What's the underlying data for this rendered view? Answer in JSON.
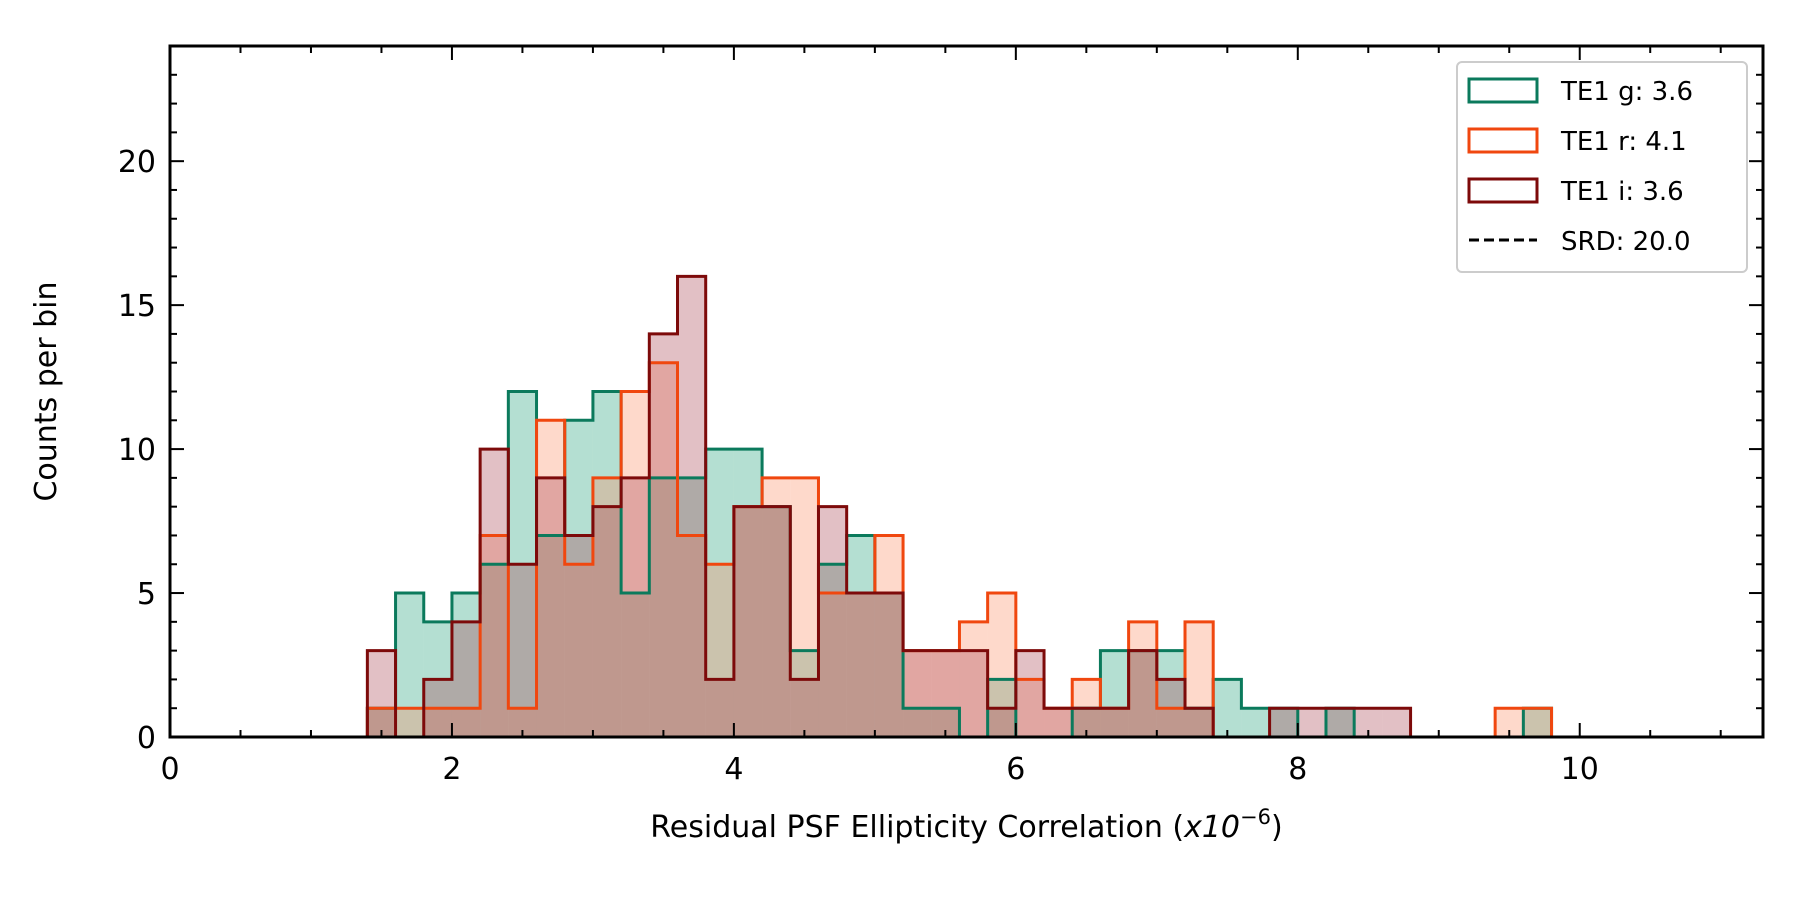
{
  "chart_data": {
    "type": "bar",
    "title": "",
    "xlabel": "Residual PSF Ellipticity Correlation (",
    "xlabel_unit": "x10",
    "xlabel_exponent": "−6",
    "xlabel_suffix": ")",
    "ylabel": "Counts per bin",
    "xlim": [
      0,
      11.3
    ],
    "ylim": [
      0,
      24
    ],
    "xticks": [
      0,
      2,
      4,
      6,
      8,
      10
    ],
    "xtick_labels": [
      "0",
      "2",
      "4",
      "6",
      "8",
      "10"
    ],
    "yticks": [
      0,
      5,
      10,
      15,
      20
    ],
    "ytick_labels": [
      "0",
      "5",
      "10",
      "15",
      "20"
    ],
    "grid": false,
    "legend_position": "top-right",
    "bin_edges": [
      1.4,
      1.6,
      1.8,
      2.0,
      2.2,
      2.4,
      2.6,
      2.8,
      3.0,
      3.2,
      3.4,
      3.6,
      3.8,
      4.0,
      4.2,
      4.4,
      4.6,
      4.8,
      5.0,
      5.2,
      5.4,
      5.6,
      5.8,
      6.0,
      6.2,
      6.4,
      6.6,
      6.8,
      7.0,
      7.2,
      7.4,
      7.6,
      7.8,
      8.0,
      8.2,
      8.4,
      8.6,
      8.8,
      9.0,
      9.2,
      9.4,
      9.6,
      9.8
    ],
    "series": [
      {
        "name": "TE1 g: 3.6",
        "edge_color": "#0b7a5c",
        "fill_color": "#1b9e77",
        "values": [
          1,
          5,
          4,
          5,
          6,
          12,
          7,
          11,
          12,
          5,
          9,
          9,
          10,
          10,
          8,
          3,
          6,
          7,
          5,
          1,
          1,
          0,
          2,
          0,
          0,
          1,
          3,
          3,
          3,
          1,
          2,
          1,
          1,
          0,
          1,
          0,
          0,
          0,
          0,
          0,
          0,
          1
        ]
      },
      {
        "name": "TE1 r: 4.1",
        "edge_color": "#f0470f",
        "fill_color": "#fc8d62",
        "values": [
          1,
          1,
          1,
          1,
          7,
          1,
          11,
          6,
          9,
          12,
          13,
          7,
          6,
          8,
          9,
          9,
          5,
          5,
          7,
          3,
          3,
          4,
          5,
          2,
          1,
          2,
          1,
          4,
          1,
          4,
          0,
          0,
          0,
          0,
          0,
          0,
          0,
          0,
          0,
          0,
          1,
          1
        ]
      },
      {
        "name": "TE1 i: 3.6",
        "edge_color": "#7d0a0a",
        "fill_color": "#a8404f",
        "values": [
          3,
          0,
          2,
          4,
          10,
          6,
          9,
          7,
          8,
          9,
          14,
          16,
          2,
          8,
          8,
          2,
          8,
          5,
          5,
          3,
          3,
          3,
          1,
          3,
          1,
          1,
          1,
          3,
          2,
          1,
          0,
          0,
          1,
          1,
          1,
          1,
          1,
          0,
          0,
          0,
          0,
          0
        ]
      }
    ],
    "reference_line": {
      "name": "SRD: 20.0",
      "value": 20.0,
      "style": "dashed",
      "color": "#000000"
    }
  }
}
